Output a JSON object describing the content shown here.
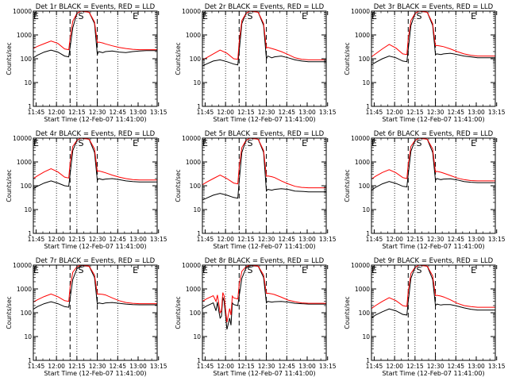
{
  "shared": {
    "xlabel": "Start Time (12-Feb-07 11:41:00)",
    "ylabel": "Counts/sec",
    "x_range_min": [
      2,
      93
    ],
    "x_ticks_min": [
      4,
      19,
      34,
      49,
      64,
      79,
      94
    ],
    "x_tick_labels": [
      "11:45",
      "12:00",
      "12:15",
      "12:30",
      "12:45",
      "13:00",
      "13:15"
    ],
    "y_range": [
      1,
      10000
    ],
    "y_scale": "log",
    "y_ticks": [
      1,
      10,
      100,
      1000,
      10000
    ],
    "y_tick_labels": [
      "1",
      "10",
      "100",
      "1000",
      "10000"
    ],
    "dotted_lines_min": [
      19,
      34,
      64
    ],
    "dashed_lines_min": [
      29,
      49
    ],
    "markers": [
      {
        "label": "E",
        "x_min": 4
      },
      {
        "label": "S",
        "x_min": 37
      },
      {
        "label": "E",
        "x_min": 77
      }
    ],
    "colors": {
      "events": "#000000",
      "lld": "#ff0000",
      "axes": "#000000"
    }
  },
  "chart_data": [
    {
      "type": "line",
      "title": "Det 1r BLACK = Events, RED = LLD",
      "x": [
        2,
        5,
        10,
        15,
        20,
        25,
        28,
        29,
        31,
        34,
        37,
        43,
        47,
        49,
        50,
        53,
        55,
        60,
        65,
        70,
        75,
        80,
        85,
        90,
        93
      ],
      "series": [
        {
          "name": "Events",
          "color": "#000000",
          "values": [
            110,
            140,
            190,
            230,
            190,
            130,
            120,
            300,
            2000,
            8000,
            10000,
            9000,
            3000,
            150,
            200,
            180,
            200,
            210,
            190,
            180,
            200,
            210,
            220,
            220,
            220
          ]
        },
        {
          "name": "LLD",
          "color": "#ff0000",
          "values": [
            270,
            330,
            430,
            560,
            440,
            260,
            240,
            700,
            3800,
            8000,
            10000,
            9000,
            3500,
            480,
            500,
            460,
            420,
            350,
            300,
            270,
            250,
            240,
            240,
            240,
            240
          ]
        }
      ]
    },
    {
      "type": "line",
      "title": "Det 2r BLACK = Events, RED = LLD",
      "x": [
        2,
        5,
        10,
        15,
        20,
        25,
        28,
        29,
        31,
        34,
        37,
        43,
        47,
        49,
        50,
        53,
        55,
        60,
        65,
        70,
        75,
        80,
        85,
        90,
        93
      ],
      "series": [
        {
          "name": "Events",
          "color": "#000000",
          "values": [
            50,
            60,
            80,
            90,
            75,
            60,
            55,
            200,
            3000,
            8000,
            10000,
            9000,
            2500,
            100,
            130,
            110,
            120,
            130,
            110,
            90,
            80,
            75,
            75,
            75,
            75
          ]
        },
        {
          "name": "LLD",
          "color": "#ff0000",
          "values": [
            90,
            110,
            160,
            230,
            170,
            100,
            95,
            500,
            4000,
            8000,
            10000,
            9000,
            3000,
            280,
            300,
            270,
            250,
            200,
            150,
            110,
            95,
            90,
            90,
            90,
            90
          ]
        }
      ]
    },
    {
      "type": "line",
      "title": "Det 3r BLACK = Events, RED = LLD",
      "x": [
        2,
        5,
        10,
        15,
        20,
        25,
        28,
        29,
        31,
        34,
        37,
        43,
        47,
        49,
        50,
        53,
        55,
        60,
        65,
        70,
        75,
        80,
        85,
        90,
        93
      ],
      "series": [
        {
          "name": "Events",
          "color": "#000000",
          "values": [
            55,
            70,
            100,
            130,
            110,
            80,
            75,
            250,
            2500,
            8000,
            10000,
            9000,
            2500,
            150,
            160,
            150,
            160,
            170,
            150,
            130,
            120,
            110,
            110,
            110,
            110
          ]
        },
        {
          "name": "LLD",
          "color": "#ff0000",
          "values": [
            120,
            160,
            260,
            400,
            280,
            160,
            150,
            700,
            4000,
            8000,
            10000,
            9000,
            3000,
            350,
            360,
            340,
            320,
            260,
            200,
            160,
            140,
            130,
            130,
            130,
            130
          ]
        }
      ]
    },
    {
      "type": "line",
      "title": "Det 4r BLACK = Events, RED = LLD",
      "x": [
        2,
        5,
        10,
        15,
        20,
        25,
        28,
        29,
        31,
        34,
        37,
        43,
        47,
        49,
        50,
        53,
        55,
        60,
        65,
        70,
        75,
        80,
        85,
        90,
        93
      ],
      "series": [
        {
          "name": "Events",
          "color": "#000000",
          "values": [
            75,
            95,
            130,
            160,
            130,
            100,
            95,
            300,
            3000,
            8000,
            10000,
            9000,
            2500,
            170,
            200,
            180,
            190,
            200,
            180,
            160,
            150,
            145,
            145,
            145,
            145
          ]
        },
        {
          "name": "LLD",
          "color": "#ff0000",
          "values": [
            200,
            260,
            380,
            520,
            380,
            230,
            210,
            900,
            4500,
            8000,
            10000,
            9000,
            3500,
            400,
            420,
            380,
            350,
            280,
            230,
            200,
            180,
            175,
            175,
            175,
            175
          ]
        }
      ]
    },
    {
      "type": "line",
      "title": "Det 5r BLACK = Events, RED = LLD",
      "x": [
        2,
        5,
        10,
        15,
        20,
        25,
        28,
        29,
        31,
        34,
        37,
        43,
        47,
        49,
        50,
        53,
        55,
        60,
        65,
        70,
        75,
        80,
        85,
        90,
        93
      ],
      "series": [
        {
          "name": "Events",
          "color": "#000000",
          "values": [
            25,
            30,
            40,
            48,
            40,
            32,
            30,
            150,
            2500,
            8000,
            10000,
            9000,
            2500,
            60,
            70,
            65,
            70,
            75,
            70,
            60,
            58,
            55,
            55,
            55,
            55
          ]
        },
        {
          "name": "LLD",
          "color": "#ff0000",
          "values": [
            110,
            140,
            200,
            280,
            200,
            130,
            120,
            600,
            4000,
            8000,
            10000,
            9000,
            3000,
            250,
            260,
            240,
            220,
            160,
            120,
            95,
            85,
            82,
            82,
            82,
            82
          ]
        }
      ]
    },
    {
      "type": "line",
      "title": "Det 6r BLACK = Events, RED = LLD",
      "x": [
        2,
        5,
        10,
        15,
        20,
        25,
        28,
        29,
        31,
        34,
        37,
        43,
        47,
        49,
        50,
        53,
        55,
        60,
        65,
        70,
        75,
        80,
        85,
        90,
        93
      ],
      "series": [
        {
          "name": "Events",
          "color": "#000000",
          "values": [
            65,
            85,
            120,
            150,
            125,
            95,
            90,
            300,
            2800,
            8000,
            10000,
            9000,
            2500,
            170,
            200,
            180,
            190,
            195,
            175,
            150,
            140,
            135,
            135,
            135,
            135
          ]
        },
        {
          "name": "LLD",
          "color": "#ff0000",
          "values": [
            190,
            250,
            360,
            470,
            350,
            220,
            200,
            800,
            4500,
            8000,
            10000,
            9000,
            3500,
            380,
            400,
            370,
            340,
            270,
            210,
            180,
            165,
            160,
            160,
            160,
            160
          ]
        }
      ]
    },
    {
      "type": "line",
      "title": "Det 7r BLACK = Events, RED = LLD",
      "x": [
        2,
        5,
        10,
        15,
        20,
        25,
        28,
        29,
        31,
        34,
        37,
        43,
        47,
        49,
        50,
        53,
        55,
        60,
        65,
        70,
        75,
        80,
        85,
        90,
        93
      ],
      "series": [
        {
          "name": "Events",
          "color": "#000000",
          "values": [
            140,
            180,
            240,
            290,
            240,
            180,
            170,
            400,
            2500,
            7000,
            9500,
            9000,
            3000,
            230,
            260,
            240,
            260,
            270,
            250,
            230,
            220,
            215,
            215,
            215,
            215
          ]
        },
        {
          "name": "LLD",
          "color": "#ff0000",
          "values": [
            280,
            350,
            480,
            610,
            470,
            320,
            300,
            1200,
            5000,
            8500,
            10000,
            9000,
            3800,
            600,
            610,
            590,
            560,
            420,
            320,
            270,
            250,
            240,
            240,
            240,
            240
          ]
        }
      ]
    },
    {
      "type": "line",
      "title": "Det 8r BLACK = Events, RED = LLD",
      "x": [
        2,
        5,
        10,
        12,
        13,
        14,
        15,
        16,
        17,
        18,
        20,
        22,
        23,
        24,
        25,
        28,
        29,
        31,
        34,
        37,
        43,
        47,
        49,
        50,
        53,
        55,
        60,
        65,
        70,
        75,
        80,
        85,
        90,
        93
      ],
      "series": [
        {
          "name": "Events",
          "color": "#000000",
          "values": [
            150,
            190,
            260,
            120,
            280,
            120,
            60,
            70,
            450,
            300,
            20,
            60,
            30,
            260,
            220,
            200,
            500,
            2800,
            7500,
            9500,
            9000,
            3000,
            260,
            300,
            280,
            290,
            300,
            280,
            250,
            240,
            230,
            230,
            230,
            230
          ]
        },
        {
          "name": "LLD",
          "color": "#ff0000",
          "values": [
            300,
            380,
            520,
            300,
            560,
            250,
            100,
            120,
            700,
            500,
            40,
            150,
            80,
            500,
            420,
            380,
            1500,
            5500,
            8500,
            10000,
            9000,
            3800,
            650,
            660,
            620,
            580,
            450,
            340,
            290,
            260,
            250,
            250,
            250,
            250
          ]
        }
      ]
    },
    {
      "type": "line",
      "title": "Det 9r BLACK = Events, RED = LLD",
      "x": [
        2,
        5,
        10,
        15,
        20,
        25,
        28,
        29,
        31,
        34,
        37,
        43,
        47,
        49,
        50,
        53,
        55,
        60,
        65,
        70,
        75,
        80,
        85,
        90,
        93
      ],
      "series": [
        {
          "name": "Events",
          "color": "#000000",
          "values": [
            60,
            80,
            110,
            145,
            120,
            85,
            80,
            300,
            2800,
            8000,
            10000,
            9000,
            2500,
            200,
            230,
            210,
            220,
            220,
            190,
            160,
            140,
            130,
            130,
            130,
            130
          ]
        },
        {
          "name": "LLD",
          "color": "#ff0000",
          "values": [
            150,
            200,
            300,
            430,
            320,
            200,
            185,
            800,
            4500,
            8000,
            10000,
            9000,
            3500,
            520,
            540,
            500,
            460,
            350,
            250,
            200,
            180,
            170,
            170,
            170,
            170
          ]
        }
      ]
    }
  ]
}
